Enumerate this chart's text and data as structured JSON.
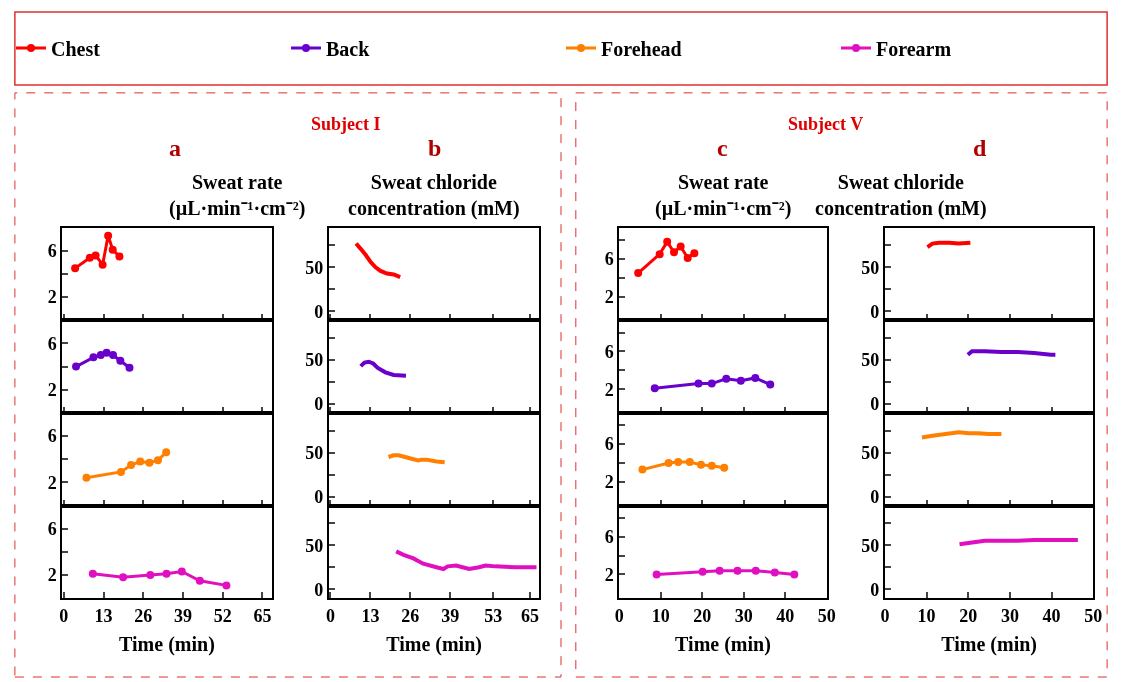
{
  "chart_data": [
    {
      "type": "line",
      "title": "a",
      "subtitle": "Sweat rate\n(µL·min⁻¹·cm⁻²)",
      "annotations": [
        "Subject I"
      ],
      "legend": "top",
      "marker": "circle",
      "tick_labels": "y",
      "xlim": [
        -0.5,
        68
      ],
      "xticks": [
        0,
        13,
        26,
        39,
        52,
        65
      ],
      "ylim": [
        0,
        8
      ],
      "yticks": [
        2,
        {
          "value": 4,
          "label": null
        },
        6
      ],
      "series": [
        {
          "name": "Chest",
          "color": "#ff0000",
          "x": [
            3.7,
            8.5,
            10.4,
            12.7,
            14.5,
            16.0,
            18.2
          ],
          "values": [
            4.5,
            5.4,
            5.6,
            4.8,
            7.3,
            6.1,
            5.5
          ]
        }
      ]
    },
    {
      "type": "line",
      "title": "b",
      "subtitle": "Sweat chloride\nconcentration (mM)",
      "marker": "none",
      "tick_labels": "y",
      "xlim": [
        -0.5,
        68
      ],
      "xticks": [
        0,
        13,
        26,
        39,
        53,
        65
      ],
      "ylim": [
        -10,
        95
      ],
      "yticks": [
        0,
        {
          "value": 25,
          "label": null
        },
        50,
        {
          "value": 75,
          "label": null
        }
      ],
      "series": [
        {
          "color": "#ff0000",
          "x": [
            8.35,
            9.85,
            11.5,
            13.1,
            14.7,
            16.3,
            18.4,
            20.6,
            22.7
          ],
          "values": [
            77,
            71,
            64,
            56,
            50,
            46,
            43,
            42,
            39
          ]
        }
      ]
    },
    {
      "type": "line",
      "title": "c",
      "subtitle": "Sweat rate\n(µL·min⁻¹·cm⁻²)",
      "annotations": [
        "Subject V"
      ],
      "marker": "circle",
      "tick_labels": "y",
      "xlim": [
        0,
        50
      ],
      "xticks": [
        0,
        10,
        20,
        30,
        40,
        50
      ],
      "ylim": [
        -0.5,
        9.3
      ],
      "yticks": [
        2,
        {
          "value": 4,
          "label": null
        },
        6,
        {
          "value": 8,
          "label": null
        }
      ],
      "series": [
        {
          "color": "#ff0000",
          "x": [
            4.56,
            9.74,
            11.55,
            13.2,
            14.8,
            16.5,
            18.1
          ],
          "values": [
            4.5,
            6.5,
            7.8,
            6.7,
            7.3,
            6.1,
            6.6
          ]
        }
      ]
    },
    {
      "type": "line",
      "title": "d",
      "subtitle": "Sweat chloride\nconcentration (mM)",
      "marker": "none",
      "tick_labels": "y",
      "xlim": [
        0,
        50
      ],
      "xticks": [
        0,
        10,
        20,
        30,
        40,
        50
      ],
      "ylim": [
        -10,
        95
      ],
      "yticks": [
        0,
        {
          "value": 25,
          "label": null
        },
        50,
        {
          "value": 75,
          "label": null
        }
      ],
      "series": [
        {
          "color": "#ff0000",
          "x": [
            10.2,
            11.4,
            13.0,
            15.4,
            17.7,
            20.5
          ],
          "values": [
            73,
            77,
            78,
            78,
            77,
            78
          ]
        }
      ]
    },
    {
      "type": "line",
      "legend": "top",
      "marker": "circle",
      "tick_labels": "y",
      "xlim": [
        -0.5,
        68
      ],
      "xticks": [
        0,
        13,
        26,
        39,
        52,
        65
      ],
      "ylim": [
        0,
        8
      ],
      "yticks": [
        2,
        {
          "value": 4,
          "label": null
        },
        6
      ],
      "series": [
        {
          "name": "Back",
          "color": "#6a00cc",
          "x": [
            4.0,
            9.7,
            12.1,
            14.0,
            16.1,
            18.5,
            21.5
          ],
          "values": [
            4.0,
            4.8,
            5.0,
            5.2,
            5.0,
            4.5,
            3.9
          ]
        }
      ]
    },
    {
      "type": "line",
      "marker": "none",
      "tick_labels": "y",
      "xlim": [
        -0.5,
        68
      ],
      "xticks": [
        0,
        13,
        26,
        39,
        53,
        65
      ],
      "ylim": [
        -10,
        95
      ],
      "yticks": [
        0,
        {
          "value": 25,
          "label": null
        },
        50,
        {
          "value": 75,
          "label": null
        }
      ],
      "series": [
        {
          "color": "#6a00cc",
          "x": [
            9.85,
            11.1,
            12.5,
            13.9,
            15.4,
            17.9,
            20.6,
            24.6
          ],
          "values": [
            43,
            47,
            48,
            46,
            41,
            36,
            33,
            32
          ]
        }
      ]
    },
    {
      "type": "line",
      "marker": "circle",
      "tick_labels": "y",
      "xlim": [
        0,
        50
      ],
      "xticks": [
        0,
        10,
        20,
        30,
        40,
        50
      ],
      "ylim": [
        -0.5,
        9.3
      ],
      "yticks": [
        2,
        {
          "value": 4,
          "label": null
        },
        6,
        {
          "value": 8,
          "label": null
        }
      ],
      "series": [
        {
          "color": "#6a00cc",
          "x": [
            8.56,
            19.1,
            22.3,
            25.8,
            29.3,
            32.8,
            36.4
          ],
          "values": [
            2.1,
            2.6,
            2.6,
            3.1,
            2.9,
            3.2,
            2.5
          ]
        }
      ]
    },
    {
      "type": "line",
      "marker": "none",
      "tick_labels": "y",
      "xlim": [
        0,
        50
      ],
      "xticks": [
        0,
        10,
        20,
        30,
        40,
        50
      ],
      "ylim": [
        -10,
        95
      ],
      "yticks": [
        0,
        {
          "value": 25,
          "label": null
        },
        50,
        {
          "value": 75,
          "label": null
        }
      ],
      "series": [
        {
          "color": "#6a00cc",
          "x": [
            19.9,
            20.9,
            24.0,
            27.9,
            31.9,
            35.8,
            39.8,
            40.9
          ],
          "values": [
            56,
            60,
            60,
            59,
            59,
            58,
            56,
            56
          ]
        }
      ]
    },
    {
      "type": "line",
      "legend": "top",
      "marker": "circle",
      "tick_labels": "y",
      "xlim": [
        -0.5,
        68
      ],
      "xticks": [
        0,
        13,
        26,
        39,
        52,
        65
      ],
      "ylim": [
        0,
        8
      ],
      "yticks": [
        2,
        {
          "value": 4,
          "label": null
        },
        6
      ],
      "series": [
        {
          "name": "Forehead",
          "color": "#ff8000",
          "x": [
            7.4,
            18.7,
            22.0,
            25.0,
            28.0,
            30.8,
            33.5
          ],
          "values": [
            2.4,
            2.9,
            3.5,
            3.8,
            3.7,
            3.9,
            4.6
          ]
        }
      ]
    },
    {
      "type": "line",
      "marker": "none",
      "tick_labels": "y",
      "xlim": [
        -0.5,
        68
      ],
      "xticks": [
        0,
        13,
        26,
        39,
        53,
        65
      ],
      "ylim": [
        -10,
        95
      ],
      "yticks": [
        0,
        {
          "value": 25,
          "label": null
        },
        50,
        {
          "value": 75,
          "label": null
        }
      ],
      "series": [
        {
          "color": "#ff8000",
          "x": [
            18.9,
            20.6,
            22.2,
            24.3,
            26.4,
            28.6,
            29.7,
            31.3,
            34.5,
            37.2
          ],
          "values": [
            45,
            47,
            47,
            45,
            43,
            41,
            42,
            42,
            40,
            39
          ]
        }
      ]
    },
    {
      "type": "line",
      "marker": "circle",
      "tick_labels": "y",
      "xlim": [
        0,
        50
      ],
      "xticks": [
        0,
        10,
        20,
        30,
        40,
        50
      ],
      "ylim": [
        -0.5,
        9.3
      ],
      "yticks": [
        2,
        {
          "value": 4,
          "label": null
        },
        6,
        {
          "value": 8,
          "label": null
        }
      ],
      "series": [
        {
          "color": "#ff8000",
          "x": [
            5.58,
            11.9,
            14.2,
            17.0,
            19.7,
            22.3,
            25.3
          ],
          "values": [
            3.3,
            4.0,
            4.1,
            4.1,
            3.8,
            3.7,
            3.5
          ]
        }
      ]
    },
    {
      "type": "line",
      "marker": "none",
      "tick_labels": "y",
      "xlim": [
        0,
        50
      ],
      "xticks": [
        0,
        10,
        20,
        30,
        40,
        50
      ],
      "ylim": [
        -10,
        95
      ],
      "yticks": [
        0,
        {
          "value": 25,
          "label": null
        },
        50,
        {
          "value": 75,
          "label": null
        }
      ],
      "series": [
        {
          "color": "#ff8000",
          "x": [
            8.9,
            11.4,
            14.6,
            17.7,
            20.1,
            22.4,
            24.8,
            27.95
          ],
          "values": [
            67,
            69,
            71,
            73,
            72,
            72,
            71,
            71
          ]
        }
      ]
    },
    {
      "type": "line",
      "legend": "top",
      "marker": "circle",
      "xlabel": "Time (min)",
      "xlim": [
        -0.5,
        68
      ],
      "xticks": [
        0,
        13,
        26,
        39,
        52,
        65
      ],
      "ylim": [
        0,
        8
      ],
      "yticks": [
        2,
        {
          "value": 4,
          "label": null
        },
        6
      ],
      "series": [
        {
          "name": "Forearm",
          "color": "#e010c0",
          "x": [
            9.5,
            19.4,
            28.3,
            33.6,
            38.6,
            44.5,
            53.2
          ],
          "values": [
            2.1,
            1.8,
            2.0,
            2.1,
            2.3,
            1.5,
            1.1
          ]
        }
      ]
    },
    {
      "type": "line",
      "marker": "none",
      "xlabel": "Time (min)",
      "xlim": [
        -0.5,
        68
      ],
      "xticks": [
        0,
        13,
        26,
        39,
        53,
        65
      ],
      "ylim": [
        -10,
        95
      ],
      "yticks": [
        0,
        {
          "value": 25,
          "label": null
        },
        50,
        {
          "value": 75,
          "label": null
        }
      ],
      "series": [
        {
          "color": "#e010c0",
          "x": [
            21.4,
            23.8,
            27.0,
            30.2,
            34.5,
            36.8,
            38.2,
            40.9,
            43.0,
            45.2,
            48.4,
            50.5,
            53.7,
            60.2,
            67.1
          ],
          "values": [
            43,
            39,
            35,
            29,
            25,
            23,
            26,
            27,
            25,
            23,
            25,
            27,
            26,
            25,
            25
          ]
        }
      ]
    },
    {
      "type": "line",
      "marker": "circle",
      "xlabel": "Time (min)",
      "xlim": [
        0,
        50
      ],
      "xticks": [
        0,
        10,
        20,
        30,
        40,
        50
      ],
      "ylim": [
        -0.5,
        9.3
      ],
      "yticks": [
        2,
        {
          "value": 4,
          "label": null
        },
        6,
        {
          "value": 8,
          "label": null
        }
      ],
      "series": [
        {
          "color": "#e010c0",
          "x": [
            9.0,
            20.1,
            24.2,
            28.5,
            32.9,
            37.5,
            42.2
          ],
          "values": [
            2.0,
            2.3,
            2.4,
            2.4,
            2.4,
            2.2,
            2.0
          ]
        }
      ]
    },
    {
      "type": "line",
      "marker": "none",
      "xlabel": "Time (min)",
      "xlim": [
        0,
        50
      ],
      "xticks": [
        0,
        10,
        20,
        30,
        40,
        50
      ],
      "ylim": [
        -10,
        95
      ],
      "yticks": [
        0,
        {
          "value": 25,
          "label": null
        },
        50,
        {
          "value": 75,
          "label": null
        }
      ],
      "series": [
        {
          "color": "#e010c0",
          "x": [
            17.9,
            20.9,
            24.0,
            27.95,
            31.9,
            35.8,
            39.8,
            46.3
          ],
          "values": [
            51,
            53,
            55,
            55,
            55,
            56,
            56,
            56
          ]
        }
      ]
    }
  ]
}
